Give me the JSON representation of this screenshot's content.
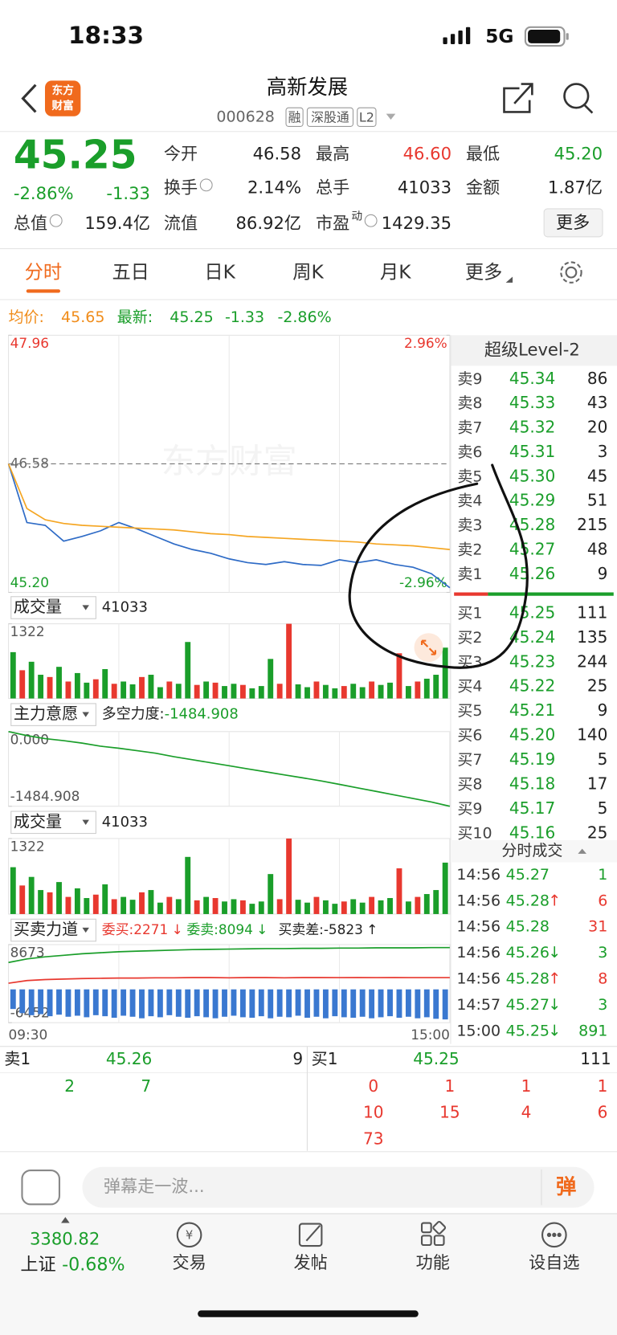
{
  "status": {
    "time": "18:33",
    "network": "5G"
  },
  "header": {
    "logo": [
      "东方",
      "财富"
    ],
    "title": "高新发展",
    "code": "000628",
    "tags": [
      "融",
      "深股通",
      "L2"
    ]
  },
  "quote": {
    "price": "45.25",
    "change_pct": "-2.86%",
    "change": "-1.33",
    "more": "更多",
    "stats": [
      {
        "label": "今开",
        "value": "46.58",
        "color": "#222222"
      },
      {
        "label": "最高",
        "value": "46.60",
        "color": "#e8382f"
      },
      {
        "label": "最低",
        "value": "45.20",
        "color": "#1a9e2a"
      },
      {
        "label": "换手",
        "value": "2.14%",
        "color": "#222222"
      },
      {
        "label": "总手",
        "value": "41033",
        "color": "#222222"
      },
      {
        "label": "金额",
        "value": "1.87亿",
        "color": "#222222"
      },
      {
        "label": "总值",
        "value": "159.4亿",
        "color": "#222222"
      },
      {
        "label": "流值",
        "value": "86.92亿",
        "color": "#222222"
      },
      {
        "label": "市盈",
        "sup": "动",
        "value": "1429.35",
        "color": "#222222"
      }
    ]
  },
  "tabs": [
    "分时",
    "五日",
    "日K",
    "周K",
    "月K",
    "更多"
  ],
  "info": {
    "avg_label": "均价:",
    "avg": "45.65",
    "latest_label": "最新:",
    "latest": "45.25",
    "change": "-1.33",
    "change_pct": "-2.86%"
  },
  "chart_data": [
    {
      "type": "line",
      "watermark": "东方财富",
      "ylim": [
        45.2,
        47.96
      ],
      "yticks": [
        {
          "value": 45.2,
          "label": "45.20"
        },
        46.58,
        47.96
      ],
      "y2lim": [
        -2.96,
        2.96
      ],
      "y2ticks": [
        {
          "value": -2.96,
          "label": "-2.96%"
        },
        {
          "value": 2.96,
          "label": "2.96%"
        }
      ],
      "series": [
        {
          "color": "#2e6bc6",
          "values": [
            46.58,
            45.95,
            45.92,
            45.75,
            45.8,
            45.86,
            45.95,
            45.88,
            45.8,
            45.72,
            45.66,
            45.62,
            45.56,
            45.52,
            45.5,
            45.53,
            45.5,
            45.49,
            45.55,
            45.52,
            45.55,
            45.5,
            45.47,
            45.4,
            45.25
          ]
        },
        {
          "color": "#f5a623",
          "values": [
            46.58,
            46.1,
            45.98,
            45.94,
            45.92,
            45.91,
            45.9,
            45.89,
            45.88,
            45.87,
            45.85,
            45.83,
            45.82,
            45.8,
            45.79,
            45.78,
            45.77,
            45.76,
            45.75,
            45.74,
            45.72,
            45.71,
            45.7,
            45.68,
            45.66
          ]
        }
      ]
    },
    {
      "type": "bar",
      "title": "成交量",
      "value_text": "41033",
      "ylim": [
        0,
        1322
      ],
      "yticks": [
        1322
      ],
      "values": [
        820,
        500,
        650,
        420,
        380,
        560,
        300,
        450,
        280,
        340,
        520,
        260,
        300,
        250,
        380,
        420,
        200,
        300,
        260,
        1000,
        240,
        300,
        280,
        220,
        260,
        240,
        180,
        220,
        700,
        260,
        1322,
        250,
        200,
        300,
        240,
        180,
        220,
        260,
        200,
        300,
        240,
        280,
        800,
        220,
        300,
        350,
        420,
        900
      ],
      "colors": [
        "#1a9e2a",
        "#e8382f",
        "#1a9e2a",
        "#1a9e2a",
        "#e8382f",
        "#1a9e2a",
        "#e8382f",
        "#1a9e2a",
        "#1a9e2a",
        "#e8382f",
        "#1a9e2a",
        "#e8382f",
        "#1a9e2a",
        "#1a9e2a",
        "#e8382f",
        "#1a9e2a",
        "#1a9e2a",
        "#e8382f",
        "#1a9e2a",
        "#1a9e2a",
        "#e8382f",
        "#1a9e2a",
        "#e8382f",
        "#1a9e2a",
        "#1a9e2a",
        "#e8382f",
        "#1a9e2a",
        "#1a9e2a",
        "#1a9e2a",
        "#e8382f",
        "#e8382f",
        "#1a9e2a",
        "#1a9e2a",
        "#e8382f",
        "#1a9e2a",
        "#1a9e2a",
        "#e8382f",
        "#1a9e2a",
        "#1a9e2a",
        "#e8382f",
        "#1a9e2a",
        "#1a9e2a",
        "#e8382f",
        "#1a9e2a",
        "#e8382f",
        "#1a9e2a",
        "#1a9e2a",
        "#1a9e2a"
      ]
    },
    {
      "type": "line",
      "title": "主力意愿",
      "indicator_label": "多空力度:",
      "indicator_value": "-1484.908",
      "ylim": [
        -1484.908,
        0
      ],
      "yticks": [
        -1484.908,
        {
          "value": 0,
          "label": "0.000"
        }
      ],
      "series": [
        {
          "color": "#1a9e2a",
          "values": [
            0,
            -80,
            -140,
            -180,
            -230,
            -290,
            -330,
            -380,
            -430,
            -500,
            -560,
            -620,
            -680,
            -740,
            -800,
            -860,
            -920,
            -980,
            -1050,
            -1120,
            -1190,
            -1260,
            -1330,
            -1400,
            -1484.908
          ]
        }
      ]
    },
    {
      "type": "combo",
      "title": "买卖力道",
      "annotations": [
        {
          "text": "委买:2271",
          "arrow": "↓",
          "color": "#e8382f"
        },
        {
          "text": "委卖:8094",
          "arrow": "↓",
          "color": "#1a9e2a"
        },
        {
          "text": "买卖差:-5823",
          "arrow": "↑",
          "color": "#222222"
        }
      ],
      "ylim": [
        -6452,
        8673
      ],
      "yticks": [
        -6452,
        8673
      ],
      "x_labels": [
        "09:30",
        "15:00"
      ],
      "series": [
        {
          "type": "line",
          "color": "#1a9e2a",
          "values": [
            5200,
            5900,
            6300,
            6600,
            6900,
            7100,
            7300,
            7400,
            7500,
            7600,
            7700,
            7750,
            7800,
            7850,
            7900,
            7900,
            7950,
            7950,
            8000,
            8000,
            8050,
            8050,
            8050,
            8100,
            8094
          ]
        },
        {
          "type": "line",
          "color": "#e8382f",
          "values": [
            1200,
            1700,
            1900,
            2000,
            2100,
            2150,
            2200,
            2200,
            2250,
            2250,
            2300,
            2300,
            2250,
            2300,
            2300,
            2250,
            2300,
            2300,
            2280,
            2300,
            2280,
            2290,
            2270,
            2280,
            2271
          ]
        },
        {
          "type": "bar",
          "color": "#3a78d0",
          "values": [
            -3800,
            -4600,
            -5000,
            -4800,
            -5200,
            -4900,
            -5300,
            -5100,
            -5400,
            -5000,
            -5200,
            -5500,
            -5100,
            -5300,
            -5600,
            -5200,
            -5400,
            -5000,
            -5300,
            -5500,
            -5200,
            -5400,
            -5600,
            -5300,
            -5100,
            -5400,
            -5500,
            -5200,
            -5600,
            -5300,
            -5400,
            -5100,
            -5500,
            -5300,
            -5600,
            -5200,
            -5400,
            -5500,
            -5300,
            -5600,
            -5400,
            -5200,
            -5500,
            -5300,
            -5600,
            -5400,
            -5700,
            -5823
          ]
        }
      ]
    }
  ],
  "order_book": {
    "title": "超级Level-2",
    "sell": [
      {
        "label": "卖9",
        "price": "45.34",
        "volume": "86"
      },
      {
        "label": "卖8",
        "price": "45.33",
        "volume": "43"
      },
      {
        "label": "卖7",
        "price": "45.32",
        "volume": "20"
      },
      {
        "label": "卖6",
        "price": "45.31",
        "volume": "3"
      },
      {
        "label": "卖5",
        "price": "45.30",
        "volume": "45"
      },
      {
        "label": "卖4",
        "price": "45.29",
        "volume": "51"
      },
      {
        "label": "卖3",
        "price": "45.28",
        "volume": "215"
      },
      {
        "label": "卖2",
        "price": "45.27",
        "volume": "48"
      },
      {
        "label": "卖1",
        "price": "45.26",
        "volume": "9"
      }
    ],
    "buy": [
      {
        "label": "买1",
        "price": "45.25",
        "volume": "111"
      },
      {
        "label": "买2",
        "price": "45.24",
        "volume": "135"
      },
      {
        "label": "买3",
        "price": "45.23",
        "volume": "244"
      },
      {
        "label": "买4",
        "price": "45.22",
        "volume": "25"
      },
      {
        "label": "买5",
        "price": "45.21",
        "volume": "9"
      },
      {
        "label": "买6",
        "price": "45.20",
        "volume": "140"
      },
      {
        "label": "买7",
        "price": "45.19",
        "volume": "5"
      },
      {
        "label": "买8",
        "price": "45.18",
        "volume": "17"
      },
      {
        "label": "买9",
        "price": "45.17",
        "volume": "5"
      },
      {
        "label": "买10",
        "price": "45.16",
        "volume": "25"
      }
    ]
  },
  "trades": {
    "title": "分时成交",
    "rows": [
      {
        "time": "14:56",
        "price": "45.27",
        "volume": "1",
        "color": "#1a9e2a"
      },
      {
        "time": "14:56",
        "price": "45.28",
        "arrow": "↑",
        "volume": "6",
        "color": "#e8382f"
      },
      {
        "time": "14:56",
        "price": "45.28",
        "volume": "31",
        "color": "#e8382f"
      },
      {
        "time": "14:56",
        "price": "45.26",
        "arrow": "↓",
        "volume": "3",
        "color": "#1a9e2a"
      },
      {
        "time": "14:56",
        "price": "45.28",
        "arrow": "↑",
        "volume": "8",
        "color": "#e8382f"
      },
      {
        "time": "14:57",
        "price": "45.27",
        "arrow": "↓",
        "volume": "3",
        "color": "#1a9e2a"
      },
      {
        "time": "15:00",
        "price": "45.25",
        "arrow": "↓",
        "volume": "891",
        "color": "#1a9e2a"
      }
    ]
  },
  "summary": {
    "sell1": {
      "label": "卖1",
      "price": "45.26",
      "volume": "9"
    },
    "buy1": {
      "label": "买1",
      "price": "45.25",
      "volume": "111"
    },
    "left": [
      "2",
      "7"
    ],
    "right": [
      "0",
      "1",
      "1",
      "1",
      "10",
      "15",
      "4",
      "6",
      "73"
    ]
  },
  "comment": {
    "placeholder": "弹幕走一波...",
    "button": "弹"
  },
  "nav": {
    "index_value": "3380.82",
    "index_name": "上证",
    "index_change": "-0.68%",
    "items": [
      "交易",
      "发帖",
      "功能",
      "设自选"
    ]
  }
}
